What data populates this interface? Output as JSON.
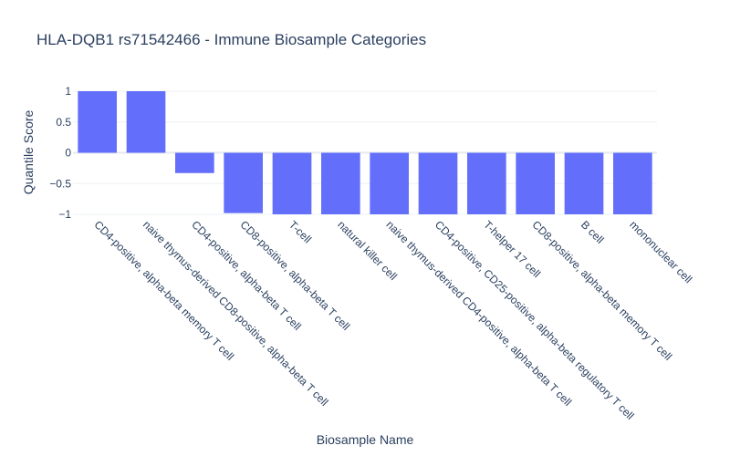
{
  "chart_data": {
    "type": "bar",
    "title": "HLA-DQB1 rs71542466 - Immune Biosample Categories",
    "xlabel": "Biosample Name",
    "ylabel": "Quantile Score",
    "ylim": [
      -1,
      1
    ],
    "yticks": [
      1,
      0.5,
      0,
      -0.5,
      -1
    ],
    "ytick_labels": [
      "1",
      "0.5",
      "0",
      "−0.5",
      "−1"
    ],
    "grid": true,
    "bar_color": "#636efa",
    "categories": [
      "CD4-positive, alpha-beta memory T cell",
      "naive thymus-derived CD8-positive, alpha-beta T cell",
      "CD4-positive, alpha-beta T cell",
      "CD8-positive, alpha-beta T cell",
      "T-cell",
      "natural killer cell",
      "naive thymus-derived CD4-positive, alpha-beta T cell",
      "CD4-positive, CD25-positive, alpha-beta regulatory T cell",
      "T-helper 17 cell",
      "CD8-positive, alpha-beta memory T cell",
      "B cell",
      "mononuclear cell"
    ],
    "values": [
      1,
      1,
      -0.33,
      -0.98,
      -1,
      -1,
      -1,
      -1,
      -1,
      -1,
      -1,
      -1
    ]
  }
}
